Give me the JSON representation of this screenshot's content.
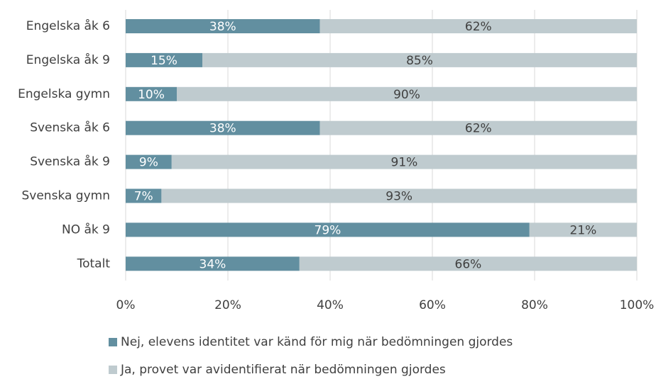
{
  "chart_data": {
    "type": "stacked_barh",
    "categories": [
      "Engelska åk 6",
      "Engelska åk 9",
      "Engelska gymn",
      "Svenska åk 6",
      "Svenska åk 9",
      "Svenska gymn",
      "NO åk 9",
      "Totalt"
    ],
    "series": [
      {
        "name": "Nej, elevens identitet var känd för mig när bedömningen gjordes",
        "color": "#628fa0",
        "values": [
          38,
          15,
          10,
          38,
          9,
          7,
          79,
          34
        ],
        "value_labels": [
          "38%",
          "15%",
          "10%",
          "38%",
          "9%",
          "7%",
          "79%",
          "34%"
        ]
      },
      {
        "name": "Ja, provet var avidentifierat när bedömningen gjordes",
        "color": "#bfcbcf",
        "values": [
          62,
          85,
          90,
          62,
          91,
          93,
          21,
          66
        ],
        "value_labels": [
          "62%",
          "85%",
          "90%",
          "62%",
          "91%",
          "93%",
          "21%",
          "66%"
        ]
      }
    ],
    "xlim": [
      0,
      100
    ],
    "xticks": [
      {
        "value": 0,
        "label": "0%"
      },
      {
        "value": 20,
        "label": "20%"
      },
      {
        "value": 40,
        "label": "40%"
      },
      {
        "value": 60,
        "label": "60%"
      },
      {
        "value": 80,
        "label": "80%"
      },
      {
        "value": 100,
        "label": "100%"
      }
    ],
    "grid": true
  }
}
